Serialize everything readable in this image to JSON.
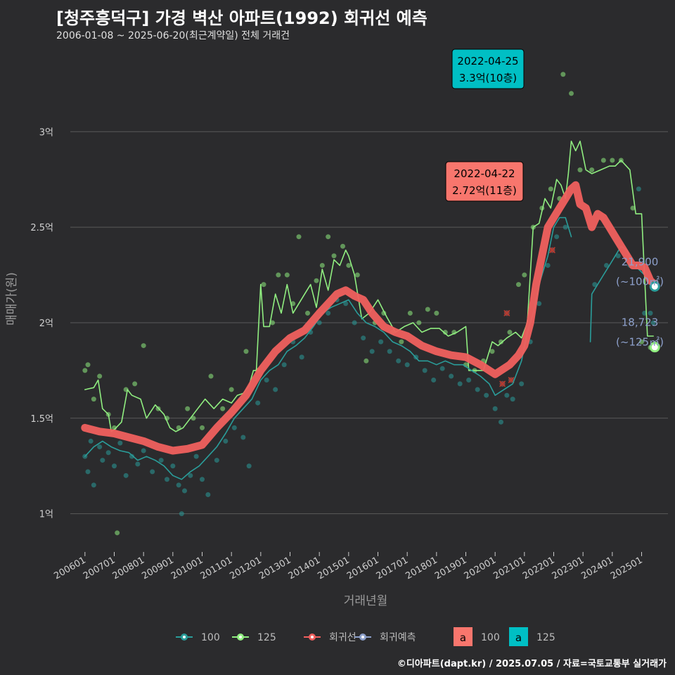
{
  "header": {
    "title": "[청주흥덕구] 가경 벽산 아파트(1992) 회귀선 예측",
    "subtitle": "2006-01-08 ~ 2025-06-20(최근계약일) 전체 거래건",
    "caption": "©디아파트(dapt.kr) / 2025.07.05 / 자료=국토교통부 실거래가"
  },
  "colors": {
    "background": "#2b2b2d",
    "grid": "#5a5a5a",
    "s100": "#2a9d9a",
    "s125": "#90ee80",
    "regression": "#f0605e",
    "prediction": "#8da0cb",
    "ann100": "#f8766d",
    "ann125": "#00bfc4"
  },
  "chart_data": {
    "type": "line",
    "xlabel": "거래년월",
    "ylabel": "매매가(원)",
    "x_unit": "decimal year",
    "xlim": [
      2005.5,
      2025.9
    ],
    "ylim": [
      0.8,
      3.45
    ],
    "y_unit": "억",
    "x_ticks": [
      {
        "x": 2006.0,
        "label": "200601"
      },
      {
        "x": 2007.0,
        "label": "200701"
      },
      {
        "x": 2008.0,
        "label": "200801"
      },
      {
        "x": 2009.0,
        "label": "200901"
      },
      {
        "x": 2010.0,
        "label": "201001"
      },
      {
        "x": 2011.0,
        "label": "201101"
      },
      {
        "x": 2012.0,
        "label": "201201"
      },
      {
        "x": 2013.0,
        "label": "201301"
      },
      {
        "x": 2014.0,
        "label": "201401"
      },
      {
        "x": 2015.0,
        "label": "201501"
      },
      {
        "x": 2016.0,
        "label": "201601"
      },
      {
        "x": 2017.0,
        "label": "201701"
      },
      {
        "x": 2018.0,
        "label": "201801"
      },
      {
        "x": 2019.0,
        "label": "201901"
      },
      {
        "x": 2020.0,
        "label": "202001"
      },
      {
        "x": 2021.0,
        "label": "202101"
      },
      {
        "x": 2022.0,
        "label": "202201"
      },
      {
        "x": 2023.0,
        "label": "202301"
      },
      {
        "x": 2024.0,
        "label": "202401"
      },
      {
        "x": 2025.0,
        "label": "202501"
      }
    ],
    "y_ticks": [
      {
        "y": 1.0,
        "label": "1억"
      },
      {
        "y": 1.5,
        "label": "1.5억"
      },
      {
        "y": 2.0,
        "label": "2억"
      },
      {
        "y": 2.5,
        "label": "2.5억"
      },
      {
        "y": 3.0,
        "label": "3억"
      }
    ],
    "series": [
      {
        "name": "125",
        "key": "s125",
        "x": [
          2006.0,
          2006.3,
          2006.45,
          2006.6,
          2006.8,
          2006.9,
          2007.0,
          2007.25,
          2007.45,
          2007.6,
          2007.9,
          2008.1,
          2008.4,
          2008.7,
          2008.9,
          2009.1,
          2009.35,
          2009.6,
          2009.85,
          2010.1,
          2010.4,
          2010.7,
          2011.0,
          2011.2,
          2011.4,
          2011.6,
          2011.75,
          2011.85,
          2012.0,
          2012.1,
          2012.3,
          2012.5,
          2012.7,
          2012.9,
          2013.1,
          2013.3,
          2013.5,
          2013.7,
          2013.9,
          2014.1,
          2014.3,
          2014.5,
          2014.7,
          2014.9,
          2015.0,
          2015.2,
          2015.45,
          2015.7,
          2016.0,
          2016.3,
          2016.6,
          2016.9,
          2017.2,
          2017.5,
          2017.8,
          2018.1,
          2018.4,
          2018.7,
          2019.0,
          2019.1,
          2019.3,
          2019.6,
          2019.9,
          2020.1,
          2020.4,
          2020.7,
          2020.9,
          2021.1,
          2021.3,
          2021.5,
          2021.7,
          2021.9,
          2022.1,
          2022.25,
          2022.4,
          2022.5,
          2022.6,
          2022.75,
          2022.9,
          2023.1,
          2023.3,
          2023.6,
          2023.9,
          2024.1,
          2024.3,
          2024.6,
          2024.8,
          2025.0,
          2025.2,
          2025.4
        ],
        "y": [
          1.65,
          1.66,
          1.7,
          1.55,
          1.52,
          1.43,
          1.44,
          1.48,
          1.65,
          1.62,
          1.6,
          1.5,
          1.57,
          1.52,
          1.45,
          1.43,
          1.45,
          1.5,
          1.55,
          1.6,
          1.55,
          1.6,
          1.58,
          1.62,
          1.63,
          1.67,
          1.75,
          1.75,
          2.2,
          1.98,
          1.98,
          2.15,
          2.05,
          2.2,
          2.05,
          2.1,
          2.15,
          2.2,
          2.08,
          2.28,
          2.17,
          2.33,
          2.3,
          2.38,
          2.35,
          2.25,
          2.02,
          2.05,
          2.12,
          2.03,
          1.95,
          1.98,
          2.0,
          1.95,
          1.97,
          1.97,
          1.93,
          1.95,
          1.98,
          1.75,
          1.75,
          1.75,
          1.9,
          1.88,
          1.92,
          1.95,
          1.92,
          2.0,
          2.5,
          2.52,
          2.65,
          2.6,
          2.75,
          2.72,
          2.65,
          2.78,
          2.95,
          2.9,
          2.95,
          2.8,
          2.78,
          2.8,
          2.82,
          2.82,
          2.85,
          2.8,
          2.57,
          2.57,
          1.93,
          1.93
        ]
      },
      {
        "name": "100",
        "key": "s100",
        "x": [
          2006.0,
          2006.3,
          2006.6,
          2006.9,
          2007.2,
          2007.5,
          2007.8,
          2008.1,
          2008.4,
          2008.7,
          2009.0,
          2009.3,
          2009.6,
          2009.9,
          2010.2,
          2010.5,
          2010.8,
          2011.1,
          2011.4,
          2011.7,
          2012.0,
          2012.3,
          2012.6,
          2012.9,
          2013.2,
          2013.5,
          2013.8,
          2014.1,
          2014.4,
          2014.7,
          2015.0,
          2015.3,
          2015.6,
          2015.9,
          2016.2,
          2016.5,
          2016.8,
          2017.1,
          2017.4,
          2017.7,
          2018.0,
          2018.3,
          2018.6,
          2018.9,
          2019.2,
          2019.5,
          2019.8,
          2020.0,
          2020.3,
          2020.6,
          2020.9,
          2021.1,
          2021.3,
          2021.5,
          2021.8,
          2022.0,
          2022.2,
          2022.4,
          2022.6
        ],
        "y": [
          1.3,
          1.35,
          1.38,
          1.35,
          1.33,
          1.32,
          1.28,
          1.3,
          1.28,
          1.25,
          1.2,
          1.18,
          1.22,
          1.25,
          1.3,
          1.35,
          1.42,
          1.5,
          1.55,
          1.6,
          1.7,
          1.75,
          1.78,
          1.85,
          1.88,
          1.92,
          1.98,
          2.05,
          2.08,
          2.1,
          2.12,
          2.05,
          2.0,
          1.98,
          1.95,
          1.9,
          1.88,
          1.85,
          1.8,
          1.8,
          1.78,
          1.8,
          1.78,
          1.78,
          1.75,
          1.72,
          1.68,
          1.62,
          1.65,
          1.68,
          1.8,
          1.95,
          2.05,
          2.2,
          2.35,
          2.5,
          2.55,
          2.55,
          2.45
        ]
      },
      {
        "name": "100-recent",
        "key": "s100",
        "x": [
          2023.25,
          2023.3,
          2023.5,
          2023.7,
          2023.9,
          2024.1,
          2024.3,
          2024.5,
          2024.7,
          2024.9,
          2025.1,
          2025.3,
          2025.45
        ],
        "y": [
          1.9,
          2.15,
          2.2,
          2.25,
          2.3,
          2.35,
          2.4,
          2.38,
          2.3,
          2.28,
          2.25,
          2.2,
          2.19
        ]
      },
      {
        "name": "회귀선",
        "key": "regression",
        "x": [
          2006.0,
          2006.5,
          2007.0,
          2007.5,
          2008.0,
          2008.5,
          2009.0,
          2009.5,
          2010.0,
          2010.5,
          2011.0,
          2011.5,
          2012.0,
          2012.5,
          2013.0,
          2013.5,
          2014.0,
          2014.3,
          2014.6,
          2014.9,
          2015.2,
          2015.5,
          2015.8,
          2016.2,
          2016.6,
          2017.0,
          2017.5,
          2018.0,
          2018.5,
          2019.0,
          2019.5,
          2020.0,
          2020.5,
          2020.8,
          2021.0,
          2021.2,
          2021.4,
          2021.6,
          2021.8,
          2022.0,
          2022.2,
          2022.4,
          2022.6,
          2022.75,
          2022.9,
          2023.1,
          2023.3,
          2023.5,
          2023.7,
          2023.9,
          2024.1,
          2024.3,
          2024.5,
          2024.7,
          2024.9,
          2025.1,
          2025.3,
          2025.45
        ],
        "y": [
          1.45,
          1.43,
          1.42,
          1.4,
          1.38,
          1.35,
          1.33,
          1.34,
          1.36,
          1.45,
          1.53,
          1.62,
          1.75,
          1.85,
          1.92,
          1.96,
          2.05,
          2.1,
          2.15,
          2.17,
          2.14,
          2.12,
          2.05,
          1.98,
          1.95,
          1.93,
          1.88,
          1.85,
          1.83,
          1.82,
          1.78,
          1.73,
          1.78,
          1.83,
          1.88,
          2.0,
          2.2,
          2.35,
          2.5,
          2.55,
          2.6,
          2.65,
          2.7,
          2.72,
          2.62,
          2.6,
          2.5,
          2.57,
          2.55,
          2.5,
          2.45,
          2.4,
          2.35,
          2.3,
          2.3,
          2.29,
          2.22,
          2.2
        ]
      }
    ],
    "scatter": {
      "s100": [
        [
          2006.0,
          1.3
        ],
        [
          2006.1,
          1.22
        ],
        [
          2006.2,
          1.38
        ],
        [
          2006.3,
          1.15
        ],
        [
          2006.5,
          1.35
        ],
        [
          2006.6,
          1.28
        ],
        [
          2006.8,
          1.32
        ],
        [
          2007.0,
          1.25
        ],
        [
          2007.2,
          1.37
        ],
        [
          2007.4,
          1.2
        ],
        [
          2007.6,
          1.3
        ],
        [
          2007.8,
          1.26
        ],
        [
          2008.0,
          1.33
        ],
        [
          2008.3,
          1.22
        ],
        [
          2008.6,
          1.28
        ],
        [
          2008.8,
          1.18
        ],
        [
          2009.0,
          1.25
        ],
        [
          2009.2,
          1.15
        ],
        [
          2009.3,
          1.0
        ],
        [
          2009.4,
          1.12
        ],
        [
          2009.6,
          1.2
        ],
        [
          2009.8,
          1.3
        ],
        [
          2010.0,
          1.18
        ],
        [
          2010.2,
          1.1
        ],
        [
          2010.5,
          1.28
        ],
        [
          2010.8,
          1.38
        ],
        [
          2011.1,
          1.45
        ],
        [
          2011.4,
          1.4
        ],
        [
          2011.6,
          1.25
        ],
        [
          2011.9,
          1.58
        ],
        [
          2012.2,
          1.7
        ],
        [
          2012.5,
          1.65
        ],
        [
          2012.8,
          1.78
        ],
        [
          2013.1,
          1.9
        ],
        [
          2013.4,
          1.82
        ],
        [
          2013.7,
          1.95
        ],
        [
          2014.0,
          2.0
        ],
        [
          2014.3,
          2.05
        ],
        [
          2014.6,
          2.12
        ],
        [
          2014.9,
          2.1
        ],
        [
          2015.2,
          2.0
        ],
        [
          2015.5,
          1.92
        ],
        [
          2015.8,
          1.85
        ],
        [
          2016.1,
          1.9
        ],
        [
          2016.4,
          1.85
        ],
        [
          2016.7,
          1.8
        ],
        [
          2017.0,
          1.78
        ],
        [
          2017.3,
          1.82
        ],
        [
          2017.6,
          1.75
        ],
        [
          2017.9,
          1.7
        ],
        [
          2018.2,
          1.76
        ],
        [
          2018.5,
          1.72
        ],
        [
          2018.8,
          1.68
        ],
        [
          2019.1,
          1.7
        ],
        [
          2019.4,
          1.65
        ],
        [
          2019.7,
          1.62
        ],
        [
          2020.0,
          1.55
        ],
        [
          2020.2,
          1.48
        ],
        [
          2020.4,
          1.62
        ],
        [
          2020.6,
          1.6
        ],
        [
          2020.9,
          1.68
        ],
        [
          2021.2,
          1.9
        ],
        [
          2021.5,
          2.1
        ],
        [
          2021.8,
          2.3
        ],
        [
          2022.1,
          2.45
        ],
        [
          2022.4,
          2.5
        ],
        [
          2023.4,
          2.2
        ],
        [
          2023.8,
          2.3
        ],
        [
          2024.2,
          2.35
        ],
        [
          2024.6,
          2.3
        ],
        [
          2024.9,
          2.7
        ],
        [
          2025.1,
          2.05
        ],
        [
          2025.3,
          2.05
        ],
        [
          2025.4,
          2.0
        ]
      ],
      "s125": [
        [
          2006.0,
          1.75
        ],
        [
          2006.1,
          1.78
        ],
        [
          2006.3,
          1.6
        ],
        [
          2006.5,
          1.72
        ],
        [
          2006.8,
          1.52
        ],
        [
          2007.0,
          1.45
        ],
        [
          2007.1,
          0.9
        ],
        [
          2007.4,
          1.65
        ],
        [
          2007.7,
          1.68
        ],
        [
          2008.0,
          1.88
        ],
        [
          2008.5,
          1.55
        ],
        [
          2008.8,
          1.5
        ],
        [
          2009.2,
          1.45
        ],
        [
          2009.5,
          1.55
        ],
        [
          2009.7,
          1.5
        ],
        [
          2010.0,
          1.45
        ],
        [
          2010.3,
          1.72
        ],
        [
          2010.7,
          1.55
        ],
        [
          2011.0,
          1.65
        ],
        [
          2011.5,
          1.85
        ],
        [
          2011.9,
          1.75
        ],
        [
          2012.1,
          2.2
        ],
        [
          2012.4,
          2.0
        ],
        [
          2012.6,
          2.25
        ],
        [
          2012.9,
          2.25
        ],
        [
          2013.1,
          2.1
        ],
        [
          2013.3,
          2.45
        ],
        [
          2013.6,
          2.05
        ],
        [
          2013.9,
          2.22
        ],
        [
          2014.1,
          2.3
        ],
        [
          2014.3,
          2.45
        ],
        [
          2014.5,
          2.35
        ],
        [
          2014.8,
          2.4
        ],
        [
          2015.0,
          2.3
        ],
        [
          2015.3,
          2.25
        ],
        [
          2015.6,
          1.8
        ],
        [
          2015.9,
          2.0
        ],
        [
          2016.2,
          2.05
        ],
        [
          2016.5,
          1.95
        ],
        [
          2016.8,
          1.9
        ],
        [
          2017.1,
          2.05
        ],
        [
          2017.4,
          2.0
        ],
        [
          2017.7,
          2.07
        ],
        [
          2018.0,
          2.05
        ],
        [
          2018.3,
          1.95
        ],
        [
          2018.6,
          1.95
        ],
        [
          2019.0,
          1.78
        ],
        [
          2019.3,
          1.75
        ],
        [
          2019.6,
          1.8
        ],
        [
          2019.9,
          1.85
        ],
        [
          2020.2,
          1.9
        ],
        [
          2020.5,
          1.95
        ],
        [
          2020.8,
          2.2
        ],
        [
          2021.0,
          2.25
        ],
        [
          2021.3,
          2.5
        ],
        [
          2021.6,
          2.6
        ],
        [
          2021.9,
          2.7
        ],
        [
          2022.2,
          2.65
        ],
        [
          2022.32,
          3.3
        ],
        [
          2022.6,
          3.2
        ],
        [
          2022.9,
          2.8
        ],
        [
          2023.3,
          2.8
        ],
        [
          2023.7,
          2.85
        ],
        [
          2024.0,
          2.85
        ],
        [
          2024.3,
          2.85
        ],
        [
          2024.7,
          2.6
        ],
        [
          2025.0,
          1.9
        ],
        [
          2025.3,
          1.87
        ]
      ],
      "cancelled": [
        [
          2020.25,
          1.68
        ],
        [
          2020.4,
          2.05
        ],
        [
          2020.55,
          1.7
        ],
        [
          2021.95,
          2.38
        ]
      ]
    },
    "end_points": [
      {
        "series": "100",
        "x": 2025.45,
        "y": 2.19,
        "value": "21,900",
        "area": "(~100㎡)"
      },
      {
        "series": "125",
        "x": 2025.45,
        "y": 1.8723,
        "value": "18,723",
        "area": "(~125㎡)"
      }
    ],
    "annotations": [
      {
        "series": "125",
        "x": 2022.32,
        "y": 3.3,
        "date": "2022-04-25",
        "price": "3.3억(10층)"
      },
      {
        "series": "100",
        "x": 2022.3,
        "y": 2.72,
        "date": "2022-04-22",
        "price": "2.72억(11층)"
      }
    ],
    "legend": {
      "position": "bottom",
      "items": [
        {
          "label": "100",
          "key": "s100"
        },
        {
          "label": "125",
          "key": "s125"
        },
        {
          "label": "회귀선",
          "key": "regression"
        },
        {
          "label": "회귀예측",
          "key": "prediction"
        }
      ],
      "box_items": [
        {
          "glyph": "a",
          "label": "100",
          "key": "ann100"
        },
        {
          "glyph": "a",
          "label": "125",
          "key": "ann125"
        }
      ]
    }
  }
}
